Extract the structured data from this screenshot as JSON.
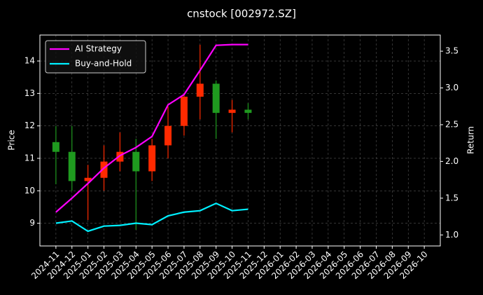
{
  "chart_data": {
    "type": "candlestick",
    "title": "cnstock [002972.SZ]",
    "ylabel": "Price",
    "y2label": "Return",
    "x": [
      "2024-11",
      "2024-12",
      "2025-01",
      "2025-02",
      "2025-03",
      "2025-04",
      "2025-05",
      "2025-06",
      "2025-07",
      "2025-08",
      "2025-09",
      "2025-10",
      "2025-11"
    ],
    "open": [
      11.5,
      11.2,
      10.3,
      10.4,
      10.9,
      11.2,
      10.6,
      11.4,
      12.0,
      12.9,
      13.3,
      12.4,
      12.5
    ],
    "high": [
      12.0,
      12.0,
      10.8,
      11.4,
      11.8,
      11.6,
      11.6,
      12.6,
      13.0,
      14.5,
      13.4,
      12.8,
      12.7
    ],
    "low": [
      10.2,
      10.0,
      9.1,
      10.0,
      10.6,
      8.8,
      10.3,
      11.0,
      11.7,
      12.2,
      11.6,
      11.8,
      12.2
    ],
    "close": [
      11.2,
      10.3,
      10.4,
      10.9,
      11.2,
      10.6,
      11.4,
      12.0,
      12.9,
      13.3,
      12.4,
      12.5,
      12.4
    ],
    "up_color": "#ff2a00",
    "down_color": "#1f9a1f",
    "series": [
      {
        "name": "AI Strategy",
        "color": "#ff00ff",
        "axis": "y2",
        "values": [
          1.31,
          1.5,
          1.7,
          1.91,
          2.08,
          2.19,
          2.34,
          2.77,
          2.91,
          3.24,
          3.58,
          3.59,
          3.59
        ]
      },
      {
        "name": "Buy-and-Hold",
        "color": "#00f0ff",
        "axis": "y2",
        "values": [
          1.16,
          1.19,
          1.05,
          1.12,
          1.13,
          1.16,
          1.14,
          1.26,
          1.31,
          1.33,
          1.43,
          1.33,
          1.35
        ]
      }
    ],
    "xlim": [
      "2024-10",
      "2026-11"
    ],
    "xticks": [
      "2024-11",
      "2024-12",
      "2025-01",
      "2025-02",
      "2025-03",
      "2025-04",
      "2025-05",
      "2025-06",
      "2025-07",
      "2025-08",
      "2025-09",
      "2025-10",
      "2025-11",
      "2025-12",
      "2026-01",
      "2026-02",
      "2026-03",
      "2026-04",
      "2026-05",
      "2026-06",
      "2026-07",
      "2026-08",
      "2026-09",
      "2026-10"
    ],
    "ylim": [
      8.3,
      14.8
    ],
    "yticks": [
      9,
      10,
      11,
      12,
      13,
      14
    ],
    "y2lim": [
      0.85,
      3.72
    ],
    "y2ticks": [
      {
        "value": 1.0,
        "label": "1.0"
      },
      {
        "value": 1.5,
        "label": "1.5"
      },
      {
        "value": 2.0,
        "label": "2.0"
      },
      {
        "value": 2.5,
        "label": "2.5"
      },
      {
        "value": 3.0,
        "label": "3.0"
      },
      {
        "value": 3.5,
        "label": "3.5"
      }
    ],
    "grid": true,
    "legend": "upper left"
  }
}
